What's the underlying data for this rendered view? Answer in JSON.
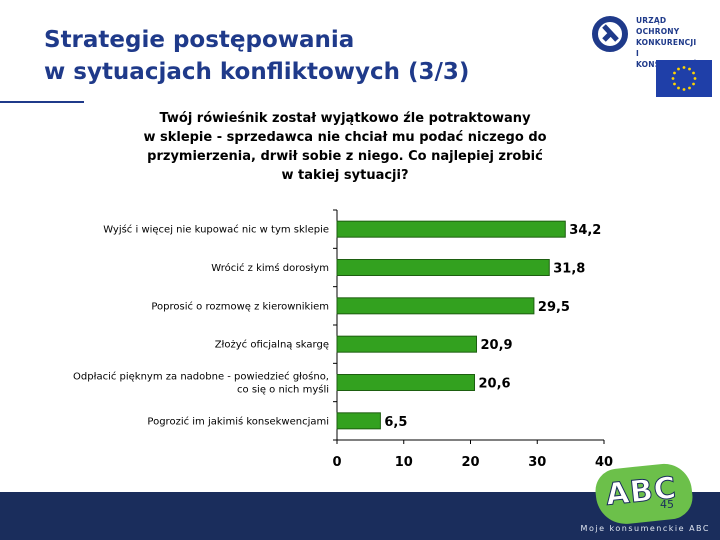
{
  "slide": {
    "title_line1": "Strategie postępowania",
    "title_line2": "w sytuacjach konfliktowych (3/3)",
    "page_number": "45"
  },
  "logo": {
    "line1": "URZĄD OCHRONY",
    "line2": "KONKURENCJI",
    "line3": "I KONSUMENTÓW"
  },
  "footer": {
    "badge": "ABC",
    "text": "Moje konsumenckie ABC"
  },
  "colors": {
    "title": "#1f3a8a",
    "bar": "#33a11f",
    "bar_stroke": "#1d5e10",
    "footer": "#1a2d5c"
  },
  "chart_data": {
    "type": "bar",
    "orientation": "horizontal",
    "title": "Twój rówieśnik został wyjątkowo źle potraktowany w sklepie - sprzedawca nie chciał mu podać niczego do przymierzenia, drwił sobie z niego. Co najlepiej zrobić w takiej sytuacji?",
    "title_lines": [
      "Twój rówieśnik został wyjątkowo źle potraktowany",
      "w sklepie  - sprzedawca nie chciał mu podać niczego do",
      "przymierzenia, drwił sobie z niego. Co najlepiej zrobić",
      "w takiej sytuacji?"
    ],
    "categories": [
      [
        "Wyjść i więcej nie kupować nic w tym sklepie"
      ],
      [
        "Wrócić z kimś dorosłym"
      ],
      [
        "Poprosić o rozmowę z kierownikiem"
      ],
      [
        "Złożyć oficjalną skargę"
      ],
      [
        "Odpłacić pięknym za nadobne - powiedzieć głośno,",
        "co się o nich myśli"
      ],
      [
        "Pogrozić im jakimiś konsekwencjami"
      ]
    ],
    "values": [
      34.2,
      31.8,
      29.5,
      20.9,
      20.6,
      6.5
    ],
    "value_labels": [
      "34,2",
      "31,8",
      "29,5",
      "20,9",
      "20,6",
      "6,5"
    ],
    "xlim": [
      0,
      40
    ],
    "xticks": [
      0,
      10,
      20,
      30,
      40
    ],
    "xlabel": "",
    "ylabel": "",
    "grid": false,
    "legend": "none"
  }
}
